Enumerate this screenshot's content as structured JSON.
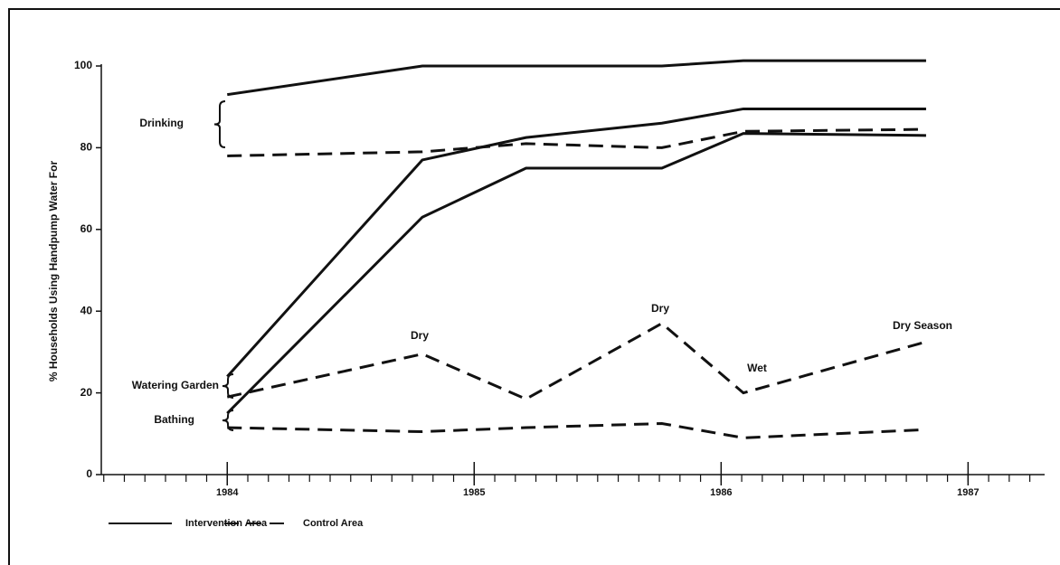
{
  "chart_data": {
    "type": "line",
    "y_label": "% Households Using Handpump Water For",
    "x": [
      1984.0,
      1984.79,
      1985.21,
      1985.76,
      1986.09,
      1986.83
    ],
    "xlim": [
      1983.49,
      1987.31
    ],
    "xticks": [
      1984,
      1985,
      1986,
      1987
    ],
    "ylim": [
      0,
      100
    ],
    "yticks": [
      0,
      20,
      40,
      60,
      80,
      100
    ],
    "color": "#111111",
    "series": [
      {
        "style": "solid",
        "values": [
          93,
          100,
          100,
          100,
          101.3,
          101.3
        ]
      },
      {
        "style": "solid",
        "values": [
          24,
          77,
          82.5,
          86,
          89.5,
          89.5
        ]
      },
      {
        "style": "solid",
        "values": [
          15,
          63,
          75,
          75,
          83.5,
          83
        ]
      },
      {
        "style": "dashed",
        "values": [
          78,
          79,
          81,
          80,
          84,
          84.5
        ]
      },
      {
        "style": "dashed",
        "values": [
          19,
          29.5,
          18.5,
          37,
          20,
          32.5
        ]
      },
      {
        "style": "dashed",
        "values": [
          11.5,
          10.5,
          11.5,
          12.5,
          9,
          11
        ]
      }
    ],
    "group_labels": [
      "Drinking",
      "Watering Garden",
      "Bathing"
    ],
    "annotations": [
      "Dry",
      "Dry",
      "Wet",
      "Dry Season"
    ],
    "legend": [
      {
        "label": "Intervention Area",
        "style": "solid"
      },
      {
        "label": "Control Area",
        "style": "dashed"
      }
    ]
  }
}
